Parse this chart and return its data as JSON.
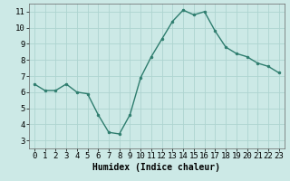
{
  "x": [
    0,
    1,
    2,
    3,
    4,
    5,
    6,
    7,
    8,
    9,
    10,
    11,
    12,
    13,
    14,
    15,
    16,
    17,
    18,
    19,
    20,
    21,
    22,
    23
  ],
  "y": [
    6.5,
    6.1,
    6.1,
    6.5,
    6.0,
    5.9,
    4.6,
    3.5,
    3.4,
    4.6,
    6.9,
    8.2,
    9.3,
    10.4,
    11.1,
    10.8,
    11.0,
    9.8,
    8.8,
    8.4,
    8.2,
    7.8,
    7.6,
    7.2
  ],
  "line_color": "#2e7d6e",
  "marker": "o",
  "marker_size": 2.0,
  "line_width": 1.0,
  "bg_color": "#cce9e6",
  "grid_color": "#aed4d0",
  "xlabel": "Humidex (Indice chaleur)",
  "xlabel_fontsize": 7,
  "tick_fontsize": 6.5,
  "xlim": [
    -0.5,
    23.5
  ],
  "ylim": [
    2.5,
    11.5
  ],
  "yticks": [
    3,
    4,
    5,
    6,
    7,
    8,
    9,
    10,
    11
  ],
  "xticks": [
    0,
    1,
    2,
    3,
    4,
    5,
    6,
    7,
    8,
    9,
    10,
    11,
    12,
    13,
    14,
    15,
    16,
    17,
    18,
    19,
    20,
    21,
    22,
    23
  ]
}
